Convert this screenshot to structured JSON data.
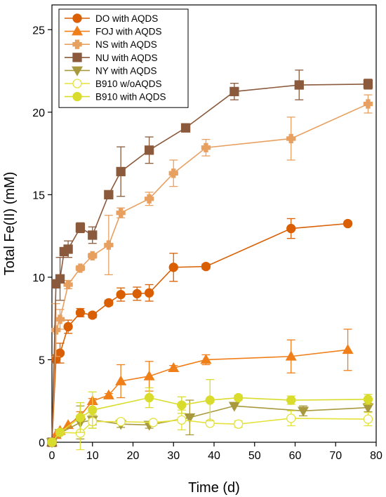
{
  "chart_data": {
    "type": "line",
    "title": "",
    "xlabel": "Time (d)",
    "ylabel": "Total Fe(II) (mM)",
    "xlim": [
      0,
      80
    ],
    "ylim": [
      0,
      26.5
    ],
    "xticks": [
      0,
      10,
      20,
      30,
      40,
      50,
      60,
      70,
      80
    ],
    "yticks": [
      0,
      5,
      10,
      15,
      20,
      25
    ],
    "grid": false,
    "legend_position": "top-left",
    "series": [
      {
        "name": "DO with AQDS",
        "color": "#D95F02",
        "marker": "circle",
        "filled": true,
        "x": [
          0,
          1,
          2,
          4,
          7,
          10,
          14,
          17,
          21,
          24,
          30,
          38,
          59,
          73
        ],
        "y": [
          0,
          5.05,
          5.4,
          7.0,
          7.85,
          7.7,
          8.45,
          8.95,
          9.0,
          9.05,
          10.6,
          10.65,
          12.95,
          13.25
        ],
        "err": [
          0,
          0.25,
          0.6,
          0.4,
          0.25,
          0.15,
          0.15,
          0.4,
          0.4,
          0.5,
          0.85,
          0.15,
          0.6,
          0
        ]
      },
      {
        "name": "FOJ with AQDS",
        "color": "#F07F1A",
        "marker": "triangle-up",
        "filled": true,
        "x": [
          0,
          1,
          2,
          4,
          7,
          10,
          14,
          17,
          24,
          30,
          38,
          59,
          73
        ],
        "y": [
          0,
          0.45,
          0.7,
          1.05,
          1.6,
          2.5,
          2.85,
          3.7,
          4.0,
          4.5,
          5.0,
          5.2,
          5.6
        ],
        "err": [
          0,
          0,
          0,
          0,
          0.25,
          0.15,
          0.1,
          1.0,
          0.9,
          0.15,
          0.3,
          1.0,
          1.25
        ]
      },
      {
        "name": "NS with AQDS",
        "color": "#E8A060",
        "marker": "plus",
        "filled": true,
        "x": [
          0,
          1,
          2,
          4,
          7,
          10,
          14,
          17,
          24,
          30,
          38,
          59,
          78
        ],
        "y": [
          0,
          6.8,
          7.45,
          9.55,
          10.55,
          11.3,
          11.95,
          13.9,
          14.75,
          16.3,
          17.85,
          18.4,
          20.5
        ],
        "err": [
          0,
          1.6,
          0.6,
          0.25,
          0.15,
          0.15,
          1.8,
          0.3,
          0.4,
          0.8,
          0.5,
          1.3,
          0.55
        ]
      },
      {
        "name": "NU with AQDS",
        "color": "#8B5A3C",
        "marker": "square",
        "filled": true,
        "x": [
          0,
          1,
          2,
          3,
          4,
          7,
          10,
          14,
          17,
          24,
          33,
          45,
          61,
          78
        ],
        "y": [
          0,
          9.6,
          9.9,
          11.55,
          11.7,
          13.0,
          12.55,
          15.0,
          16.4,
          17.7,
          19.05,
          21.25,
          21.65,
          21.7
        ],
        "err": [
          0,
          0,
          1.3,
          0,
          0.5,
          0.3,
          0.5,
          0,
          1.5,
          0.8,
          0.25,
          0.5,
          0.9,
          0.3
        ]
      },
      {
        "name": "NY with AQDS",
        "color": "#A89A3C",
        "marker": "triangle-down",
        "filled": true,
        "x": [
          0,
          2,
          7,
          10,
          17,
          24,
          34,
          45,
          62,
          78
        ],
        "y": [
          0,
          0.55,
          1.2,
          1.35,
          1.1,
          1.05,
          1.5,
          2.2,
          1.9,
          2.1
        ],
        "err": [
          0,
          0,
          1.0,
          0.3,
          0.2,
          0.2,
          1.05,
          0,
          0.3,
          0.25
        ]
      },
      {
        "name": "B910 w/oAQDS",
        "color": "#E3E23A",
        "marker": "circle",
        "filled": false,
        "x": [
          0,
          2,
          7,
          10,
          17,
          25,
          32,
          39,
          46,
          59,
          78
        ],
        "y": [
          0,
          0.6,
          0.55,
          1.25,
          1.25,
          1.2,
          1.35,
          1.15,
          1.1,
          1.45,
          1.4
        ],
        "err": [
          0,
          0.1,
          1.0,
          0.4,
          0.15,
          0.1,
          0.6,
          0.1,
          0.2,
          0.45,
          0.4
        ]
      },
      {
        "name": "B910 with AQDS",
        "color": "#D9DC2C",
        "marker": "circle",
        "filled": true,
        "x": [
          0,
          2,
          7,
          10,
          24,
          32,
          39,
          46,
          59,
          78
        ],
        "y": [
          0,
          0.6,
          1.5,
          1.95,
          2.7,
          2.25,
          2.55,
          2.7,
          2.55,
          2.6
        ],
        "err": [
          0,
          0.15,
          0.9,
          1.1,
          0.6,
          0.5,
          1.25,
          0.15,
          0.25,
          0.3
        ]
      }
    ]
  }
}
